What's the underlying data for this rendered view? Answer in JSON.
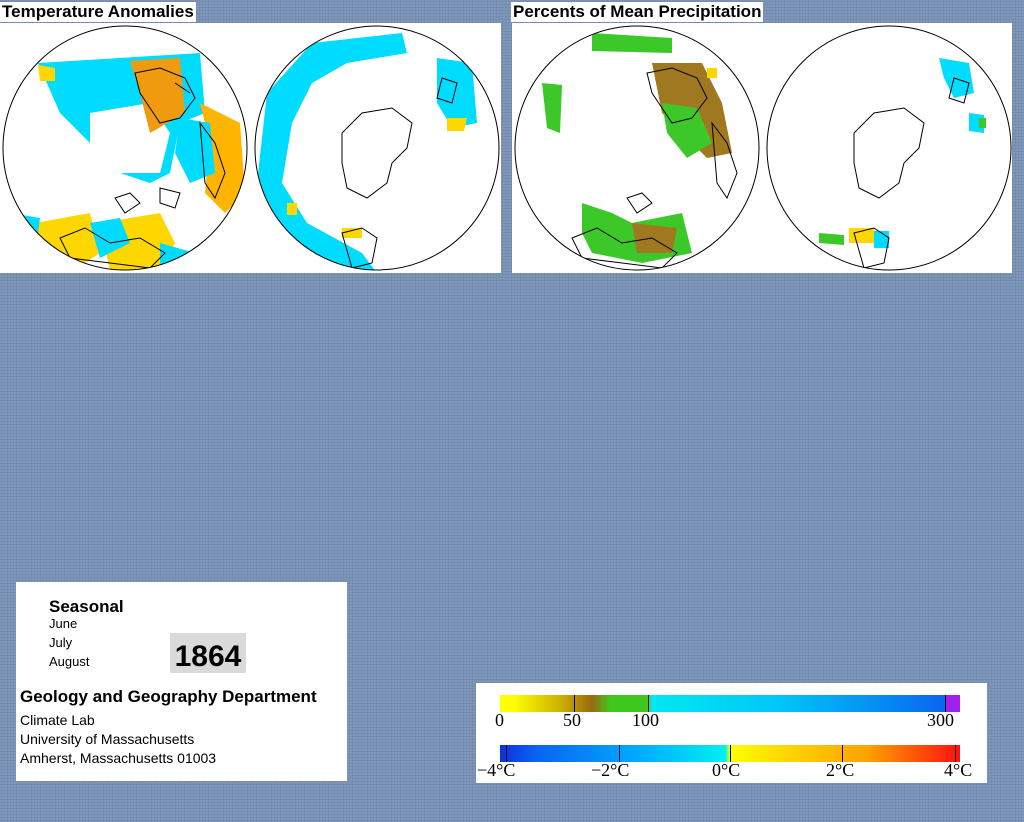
{
  "panels": {
    "temperature": {
      "title": "Temperature Anomalies"
    },
    "precipitation": {
      "title": "Percents of Mean Precipitation"
    }
  },
  "info": {
    "season_title": "Seasonal",
    "months": [
      "June",
      "July",
      "August"
    ],
    "year": "1864",
    "department": "Geology and Geography Department",
    "lab_lines": [
      "Climate Lab",
      "University of Massachusetts",
      "Amherst, Massachusetts 01003"
    ]
  },
  "legend": {
    "precipitation": {
      "unit": "percent of mean",
      "ticks": [
        "0",
        "50",
        "100",
        "300"
      ],
      "colors": [
        "#ffff00",
        "#c8a800",
        "#9a6a10",
        "#3ec81e",
        "#00e8f0",
        "#0a64f0",
        "#a020f0"
      ]
    },
    "temperature": {
      "unit": "°C",
      "ticks": [
        "−4°C",
        "−2°C",
        "0°C",
        "2°C",
        "4°C"
      ],
      "colors": [
        "#0a32e0",
        "#00aaff",
        "#00f0f0",
        "#ffff00",
        "#ffa000",
        "#ff1010"
      ]
    }
  },
  "map_colors": {
    "cyan": "#00dcff",
    "yellow": "#ffd700",
    "orange": "#ffb400",
    "dark_orange": "#f09a10",
    "blue": "#1e90ff",
    "green": "#3cc828",
    "brown": "#a07820"
  }
}
